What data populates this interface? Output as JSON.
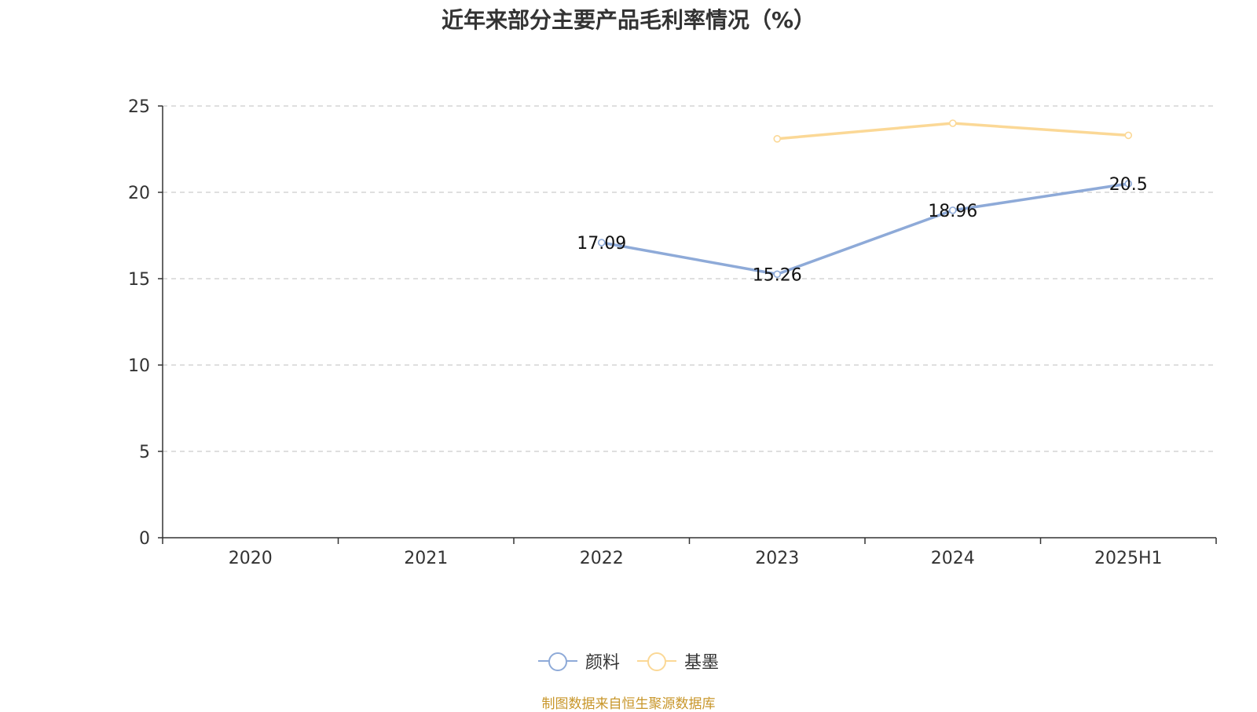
{
  "title": "近年来部分主要产品毛利率情况（%）",
  "chart_data": {
    "type": "line",
    "categories": [
      "2020",
      "2021",
      "2022",
      "2023",
      "2024",
      "2025H1"
    ],
    "ylim": [
      0,
      25
    ],
    "yticks": [
      0,
      5,
      10,
      15,
      20,
      25
    ],
    "grid": true,
    "legend_position": "bottom",
    "series": [
      {
        "name": "颜料",
        "color": "#8eaad8",
        "values": [
          null,
          null,
          17.09,
          15.26,
          18.96,
          20.5
        ],
        "labels": [
          "",
          "",
          "17.09",
          "15.26",
          "18.96",
          "20.5"
        ]
      },
      {
        "name": "基墨",
        "color": "#fbd896",
        "values": [
          null,
          null,
          null,
          23.1,
          24.0,
          23.3
        ],
        "labels": [
          "",
          "",
          "",
          "",
          "",
          ""
        ]
      }
    ]
  },
  "source": "制图数据来自恒生聚源数据库"
}
